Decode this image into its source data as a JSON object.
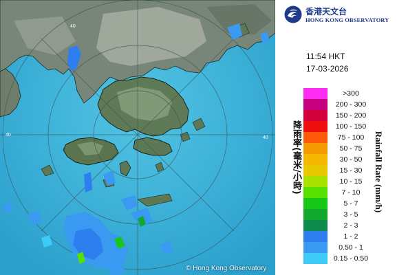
{
  "header": {
    "org_name_zh": "香港天文台",
    "org_name_en": "HONG KONG OBSERVATORY",
    "logo_icon": "hko-logo-icon"
  },
  "timestamp": {
    "time": "11:54 HKT",
    "date": "17-03-2026"
  },
  "legend": {
    "title_en": "Rainfall Rate (mm/h)",
    "title_zh": "降雨率(毫米/小時)",
    "items": [
      {
        "label": ">300",
        "color": "#ff2df2"
      },
      {
        "label": "200 - 300",
        "color": "#c6007e"
      },
      {
        "label": "150 - 200",
        "color": "#d1003a"
      },
      {
        "label": "100 - 150",
        "color": "#ee1010"
      },
      {
        "label": "75 - 100",
        "color": "#ff5a0a"
      },
      {
        "label": "50 - 75",
        "color": "#f29a00"
      },
      {
        "label": "30 - 50",
        "color": "#f5b800"
      },
      {
        "label": "15 - 30",
        "color": "#e8c800"
      },
      {
        "label": "10 - 15",
        "color": "#a8e000"
      },
      {
        "label": "7 - 10",
        "color": "#58e000"
      },
      {
        "label": "5 - 7",
        "color": "#18c818"
      },
      {
        "label": "3 - 5",
        "color": "#12a82e"
      },
      {
        "label": "2 - 3",
        "color": "#0e8a4c"
      },
      {
        "label": "1 - 2",
        "color": "#2e7ef0"
      },
      {
        "label": "0.50 - 1",
        "color": "#3a9af2"
      },
      {
        "label": "0.15 - 0.50",
        "color": "#3ecbf6"
      }
    ]
  },
  "map": {
    "copyright": "© Hong Kong Observatory",
    "range_ring_labels": [
      "40",
      "40",
      "40"
    ],
    "sea_color": "#35b0d8",
    "land_color": "#6e7d6a"
  }
}
